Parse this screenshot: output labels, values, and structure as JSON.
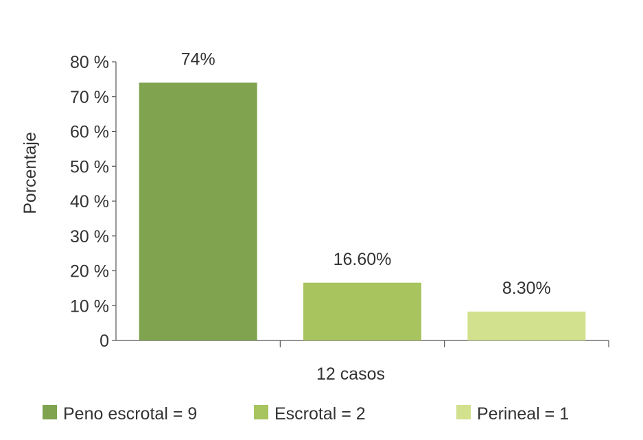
{
  "chart_data": {
    "type": "bar",
    "categories": [
      "12 casos"
    ],
    "ylabel": "Porcentaje",
    "ylim": [
      0,
      80
    ],
    "yticks": [
      {
        "value": 0,
        "label": "0"
      },
      {
        "value": 10,
        "label": "10 %"
      },
      {
        "value": 20,
        "label": "20 %"
      },
      {
        "value": 30,
        "label": "30 %"
      },
      {
        "value": 40,
        "label": "40 %"
      },
      {
        "value": 50,
        "label": "50 %"
      },
      {
        "value": 60,
        "label": "60 %"
      },
      {
        "value": 70,
        "label": "70 %"
      },
      {
        "value": 80,
        "label": "80 %"
      }
    ],
    "series": [
      {
        "name": "Peno escrotal = 9",
        "values": [
          74
        ],
        "data_label": "74%",
        "color": "#7fa34e"
      },
      {
        "name": "Escrotal = 2",
        "values": [
          16.6
        ],
        "data_label": "16.60%",
        "color": "#a8c45e"
      },
      {
        "name": "Perineal = 1",
        "values": [
          8.3
        ],
        "data_label": "8.30%",
        "color": "#d2e18e"
      }
    ],
    "grid": false,
    "legend_position": "bottom"
  }
}
